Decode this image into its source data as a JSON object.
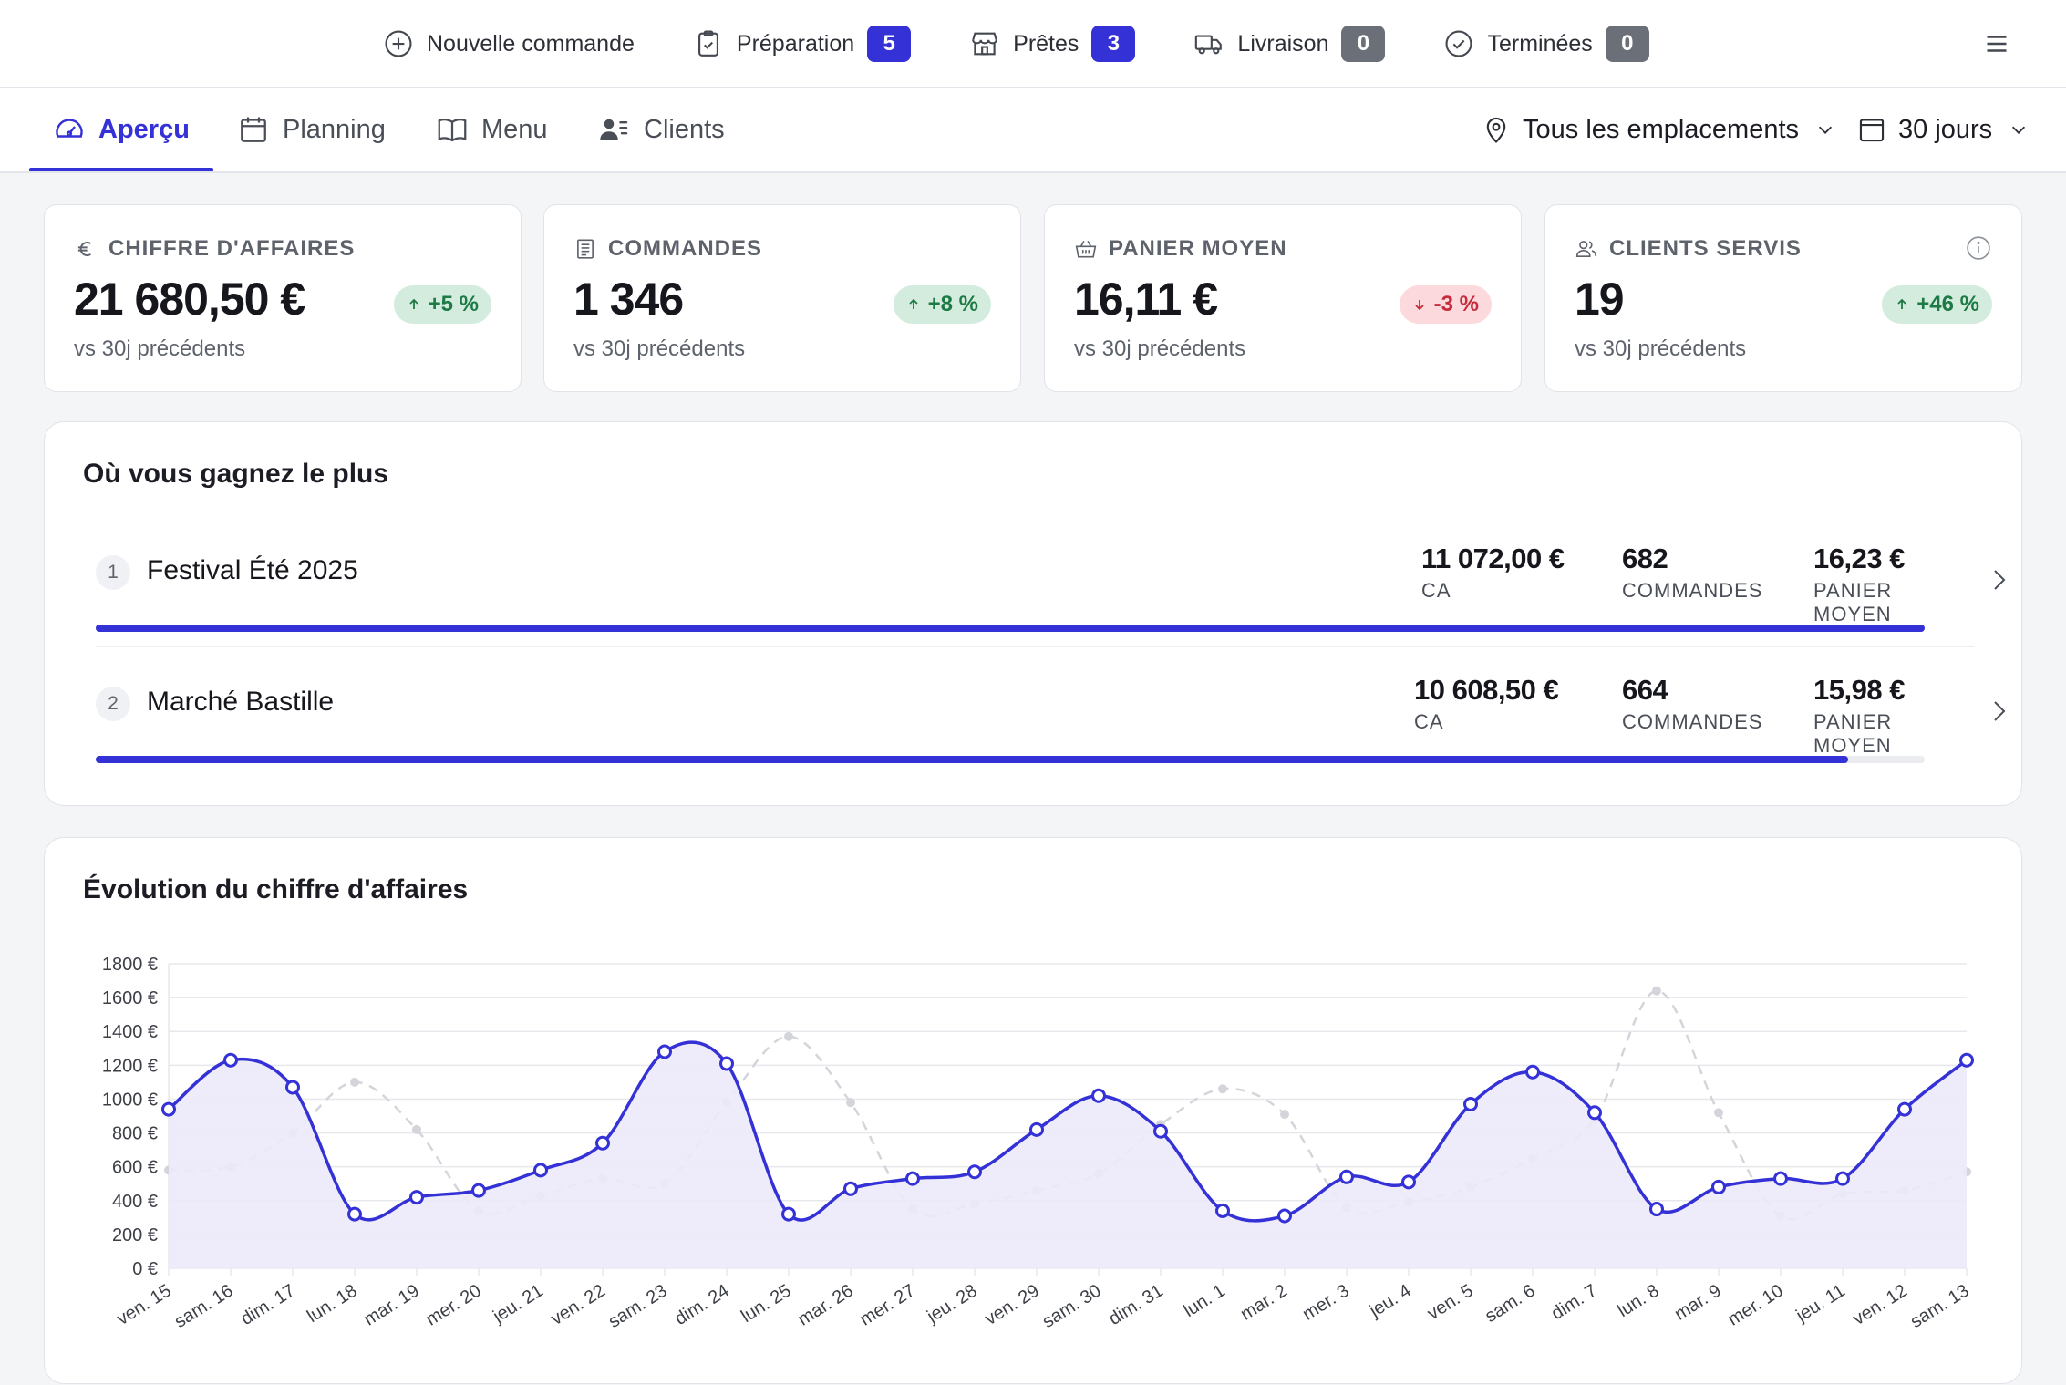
{
  "topbar": {
    "items": [
      {
        "label": "Nouvelle commande",
        "icon": "plus-circle-icon"
      },
      {
        "label": "Préparation",
        "icon": "clipboard-icon",
        "badge": "5",
        "badge_color": "#3431d6"
      },
      {
        "label": "Prêtes",
        "icon": "store-icon",
        "badge": "3",
        "badge_color": "#3431d6"
      },
      {
        "label": "Livraison",
        "icon": "truck-icon",
        "badge": "0",
        "badge_color": "#6b7078"
      },
      {
        "label": "Terminées",
        "icon": "check-circle-icon",
        "badge": "0",
        "badge_color": "#6b7078"
      }
    ],
    "menu_icon": "hamburger-icon"
  },
  "nav": {
    "tabs": [
      {
        "label": "Aperçu",
        "icon": "gauge-icon",
        "active": true
      },
      {
        "label": "Planning",
        "icon": "calendar-icon",
        "active": false
      },
      {
        "label": "Menu",
        "icon": "book-icon",
        "active": false
      },
      {
        "label": "Clients",
        "icon": "users-list-icon",
        "active": false
      }
    ],
    "location_selector": "Tous les emplacements",
    "period_selector": "30 jours"
  },
  "kpis": [
    {
      "label": "CHIFFRE D'AFFAIRES",
      "icon": "euro-icon",
      "value": "21 680,50 €",
      "change": "+5 %",
      "direction": "up",
      "sub": "vs 30j précédents"
    },
    {
      "label": "COMMANDES",
      "icon": "receipt-icon",
      "value": "1 346",
      "change": "+8 %",
      "direction": "up",
      "sub": "vs 30j précédents"
    },
    {
      "label": "PANIER MOYEN",
      "icon": "basket-icon",
      "value": "16,11 €",
      "change": "-3 %",
      "direction": "down",
      "sub": "vs 30j précédents"
    },
    {
      "label": "CLIENTS SERVIS",
      "icon": "users-icon",
      "value": "19",
      "change": "+46 %",
      "direction": "up",
      "sub": "vs 30j précédents"
    }
  ],
  "ranking": {
    "title": "Où vous gagnez le plus",
    "rows": [
      {
        "rank": "1",
        "name": "Festival Été 2025",
        "revenue": "11 072,00 €",
        "revenue_label": "CA",
        "orders": "682",
        "orders_label": "COMMANDES",
        "basket": "16,23 €",
        "basket_label": "PANIER MOYEN",
        "share": 1.0
      },
      {
        "rank": "2",
        "name": "Marché Bastille",
        "revenue": "10 608,50 €",
        "revenue_label": "CA",
        "orders": "664",
        "orders_label": "COMMANDES",
        "basket": "15,98 €",
        "basket_label": "PANIER MOYEN",
        "share": 0.958
      }
    ]
  },
  "revenue_chart": {
    "title": "Évolution du chiffre d'affaires"
  },
  "chart_data": {
    "type": "line",
    "title": "Évolution du chiffre d'affaires",
    "x": [
      "ven. 15",
      "sam. 16",
      "dim. 17",
      "lun. 18",
      "mar. 19",
      "mer. 20",
      "jeu. 21",
      "ven. 22",
      "sam. 23",
      "dim. 24",
      "lun. 25",
      "mar. 26",
      "mer. 27",
      "jeu. 28",
      "ven. 29",
      "sam. 30",
      "dim. 31",
      "lun. 1",
      "mar. 2",
      "mer. 3",
      "jeu. 4",
      "ven. 5",
      "sam. 6",
      "dim. 7",
      "lun. 8",
      "mar. 9",
      "mer. 10",
      "jeu. 11",
      "ven. 12",
      "sam. 13"
    ],
    "yticks": [
      "0 €",
      "200 €",
      "400 €",
      "600 €",
      "800 €",
      "1000 €",
      "1200 €",
      "1400 €",
      "1600 €",
      "1800 €"
    ],
    "ylim": [
      0,
      1800
    ],
    "grid": true,
    "series": [
      {
        "color": "#3431d6",
        "style": "solid",
        "fill": "#eceafb",
        "values": [
          940,
          1230,
          1070,
          320,
          420,
          460,
          580,
          740,
          1280,
          1210,
          320,
          470,
          530,
          570,
          820,
          1020,
          810,
          340,
          310,
          540,
          510,
          970,
          1160,
          920,
          350,
          480,
          530,
          530,
          940,
          1230
        ]
      },
      {
        "color": "#d4d5db",
        "style": "dashed",
        "values": [
          580,
          600,
          800,
          1100,
          820,
          340,
          430,
          530,
          500,
          980,
          1370,
          980,
          350,
          380,
          460,
          560,
          850,
          1060,
          910,
          360,
          390,
          480,
          650,
          880,
          1640,
          920,
          310,
          440,
          460,
          570
        ]
      }
    ]
  }
}
